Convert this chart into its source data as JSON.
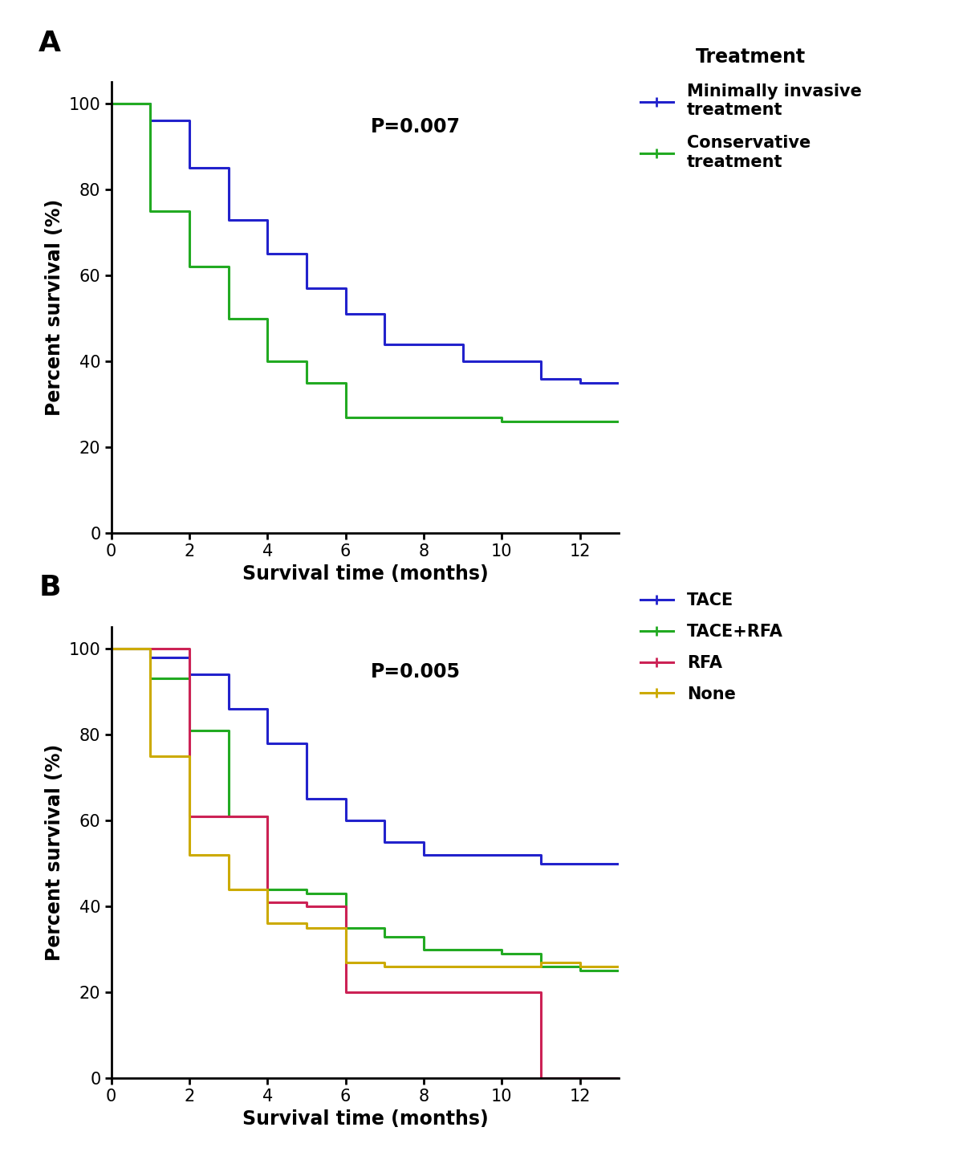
{
  "panel_A": {
    "title_label": "A",
    "p_value": "P=0.007",
    "legend_title": "Treatment",
    "series": [
      {
        "label": "Minimally invasive\ntreatment",
        "color": "#2222CC",
        "x": [
          0,
          1,
          1,
          2,
          2,
          3,
          3,
          4,
          4,
          5,
          5,
          6,
          6,
          7,
          7,
          8,
          8,
          9,
          9,
          10,
          10,
          11,
          11,
          12,
          12,
          13
        ],
        "y": [
          100,
          100,
          96,
          96,
          85,
          85,
          73,
          73,
          65,
          65,
          57,
          57,
          51,
          51,
          44,
          44,
          44,
          44,
          40,
          40,
          40,
          40,
          36,
          36,
          35,
          35
        ]
      },
      {
        "label": "Conservative\ntreatment",
        "color": "#22AA22",
        "x": [
          0,
          1,
          1,
          2,
          2,
          3,
          3,
          4,
          4,
          5,
          5,
          6,
          6,
          7,
          7,
          8,
          8,
          9,
          9,
          10,
          10,
          11,
          11,
          12,
          12,
          13
        ],
        "y": [
          100,
          100,
          75,
          75,
          62,
          62,
          50,
          50,
          40,
          40,
          35,
          35,
          27,
          27,
          27,
          27,
          27,
          27,
          27,
          27,
          26,
          26,
          26,
          26,
          26,
          26
        ]
      }
    ],
    "xlim": [
      0,
      13
    ],
    "ylim": [
      0,
      105
    ],
    "xticks": [
      0,
      2,
      4,
      6,
      8,
      10,
      12
    ],
    "yticks": [
      0,
      20,
      40,
      60,
      80,
      100
    ],
    "xlabel": "Survival time (months)",
    "ylabel": "Percent survival (%)"
  },
  "panel_B": {
    "title_label": "B",
    "p_value": "P=0.005",
    "series": [
      {
        "label": "TACE",
        "color": "#2222CC",
        "x": [
          0,
          1,
          1,
          2,
          2,
          3,
          3,
          4,
          4,
          5,
          5,
          6,
          6,
          7,
          7,
          8,
          8,
          9,
          9,
          10,
          10,
          11,
          11,
          12,
          12,
          13
        ],
        "y": [
          100,
          100,
          98,
          98,
          94,
          94,
          86,
          86,
          78,
          78,
          65,
          65,
          60,
          60,
          55,
          55,
          52,
          52,
          52,
          52,
          52,
          52,
          50,
          50,
          50,
          50
        ]
      },
      {
        "label": "TACE+RFA",
        "color": "#22AA22",
        "x": [
          0,
          1,
          1,
          2,
          2,
          3,
          3,
          4,
          4,
          5,
          5,
          6,
          6,
          7,
          7,
          8,
          8,
          10,
          10,
          11,
          11,
          12,
          12,
          13
        ],
        "y": [
          100,
          100,
          93,
          93,
          81,
          81,
          61,
          61,
          44,
          44,
          43,
          43,
          35,
          35,
          33,
          33,
          30,
          30,
          29,
          29,
          26,
          26,
          25,
          25
        ]
      },
      {
        "label": "RFA",
        "color": "#CC2255",
        "x": [
          0,
          2,
          2,
          3,
          3,
          4,
          4,
          5,
          5,
          6,
          6,
          11,
          11,
          13
        ],
        "y": [
          100,
          100,
          61,
          61,
          61,
          61,
          41,
          41,
          40,
          40,
          20,
          20,
          0,
          0
        ]
      },
      {
        "label": "None",
        "color": "#CCAA00",
        "x": [
          0,
          1,
          1,
          2,
          2,
          3,
          3,
          4,
          4,
          5,
          5,
          6,
          6,
          7,
          7,
          8,
          8,
          10,
          10,
          11,
          11,
          12,
          12,
          13
        ],
        "y": [
          100,
          100,
          75,
          75,
          52,
          52,
          44,
          44,
          36,
          36,
          35,
          35,
          27,
          27,
          26,
          26,
          26,
          26,
          26,
          26,
          27,
          27,
          26,
          26
        ]
      }
    ],
    "xlim": [
      0,
      13
    ],
    "ylim": [
      0,
      105
    ],
    "xticks": [
      0,
      2,
      4,
      6,
      8,
      10,
      12
    ],
    "yticks": [
      0,
      20,
      40,
      60,
      80,
      100
    ],
    "xlabel": "Survival time (months)",
    "ylabel": "Percent survival (%)"
  },
  "figure_bg": "#ffffff",
  "axes_bg": "#ffffff",
  "tick_fontsize": 15,
  "label_fontsize": 17,
  "legend_fontsize": 15,
  "legend_title_fontsize": 17,
  "panel_label_fontsize": 26,
  "p_value_fontsize": 17,
  "line_width": 2.2
}
